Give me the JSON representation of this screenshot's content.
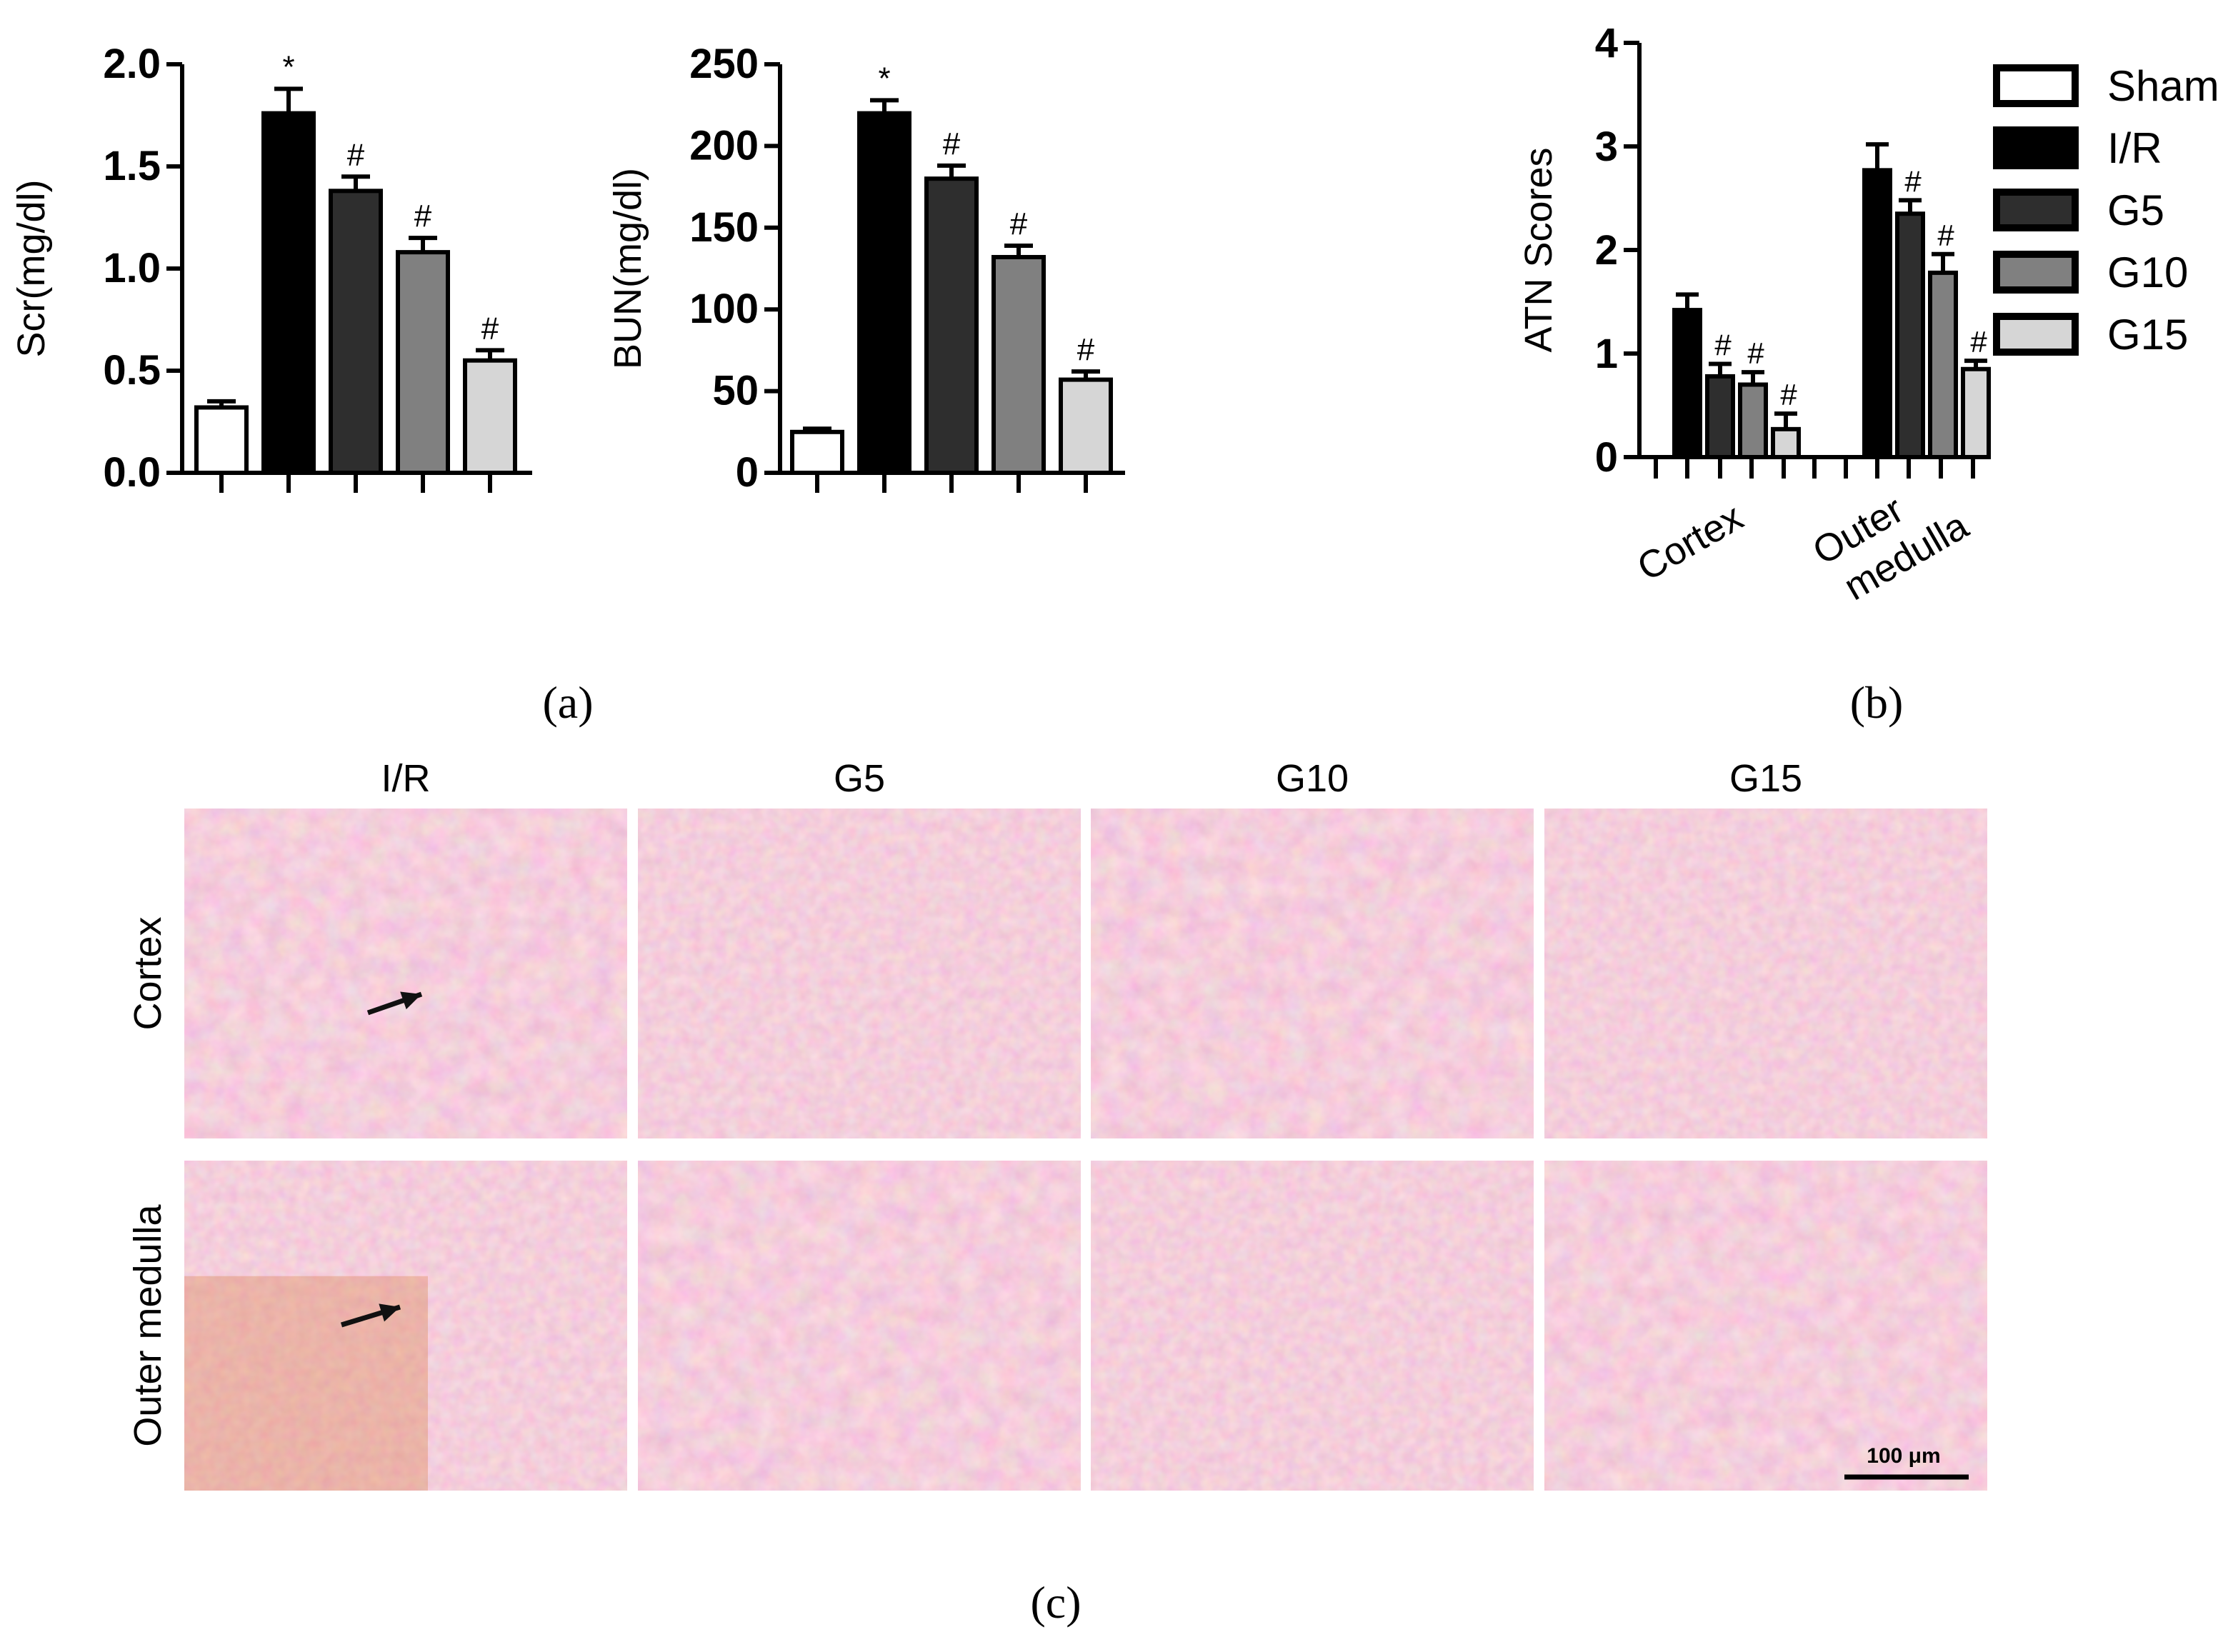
{
  "chart_data": [
    {
      "type": "bar",
      "panel": "a",
      "ylabel": "Scr(mg/dl)",
      "ylim": [
        0,
        2.0
      ],
      "yticks": [
        "0.0",
        "0.5",
        "1.0",
        "1.5",
        "2.0"
      ],
      "categories": [
        "Sham",
        "I/R",
        "G5",
        "G10",
        "G15"
      ],
      "values": [
        0.32,
        1.76,
        1.38,
        1.08,
        0.55
      ],
      "errors": [
        0.03,
        0.12,
        0.07,
        0.07,
        0.05
      ],
      "markers": [
        "",
        "*",
        "#",
        "#",
        "#"
      ]
    },
    {
      "type": "bar",
      "panel": "a",
      "ylabel": "BUN(mg/dl)",
      "ylim": [
        0,
        250
      ],
      "yticks": [
        "0",
        "50",
        "100",
        "150",
        "200",
        "250"
      ],
      "categories": [
        "Sham",
        "I/R",
        "G5",
        "G10",
        "G15"
      ],
      "values": [
        25,
        220,
        180,
        132,
        57
      ],
      "errors": [
        2,
        8,
        8,
        7,
        5
      ],
      "markers": [
        "",
        "*",
        "#",
        "#",
        "#"
      ]
    },
    {
      "type": "bar",
      "panel": "b",
      "ylabel": "ATN Scores",
      "ylim": [
        0,
        4
      ],
      "yticks": [
        "0",
        "1",
        "2",
        "3",
        "4"
      ],
      "categories": [
        "Cortex",
        "Outer medulla"
      ],
      "category_lines": [
        [
          "Cortex"
        ],
        [
          "Outer",
          "medulla"
        ]
      ],
      "series": [
        {
          "name": "I/R",
          "values": [
            1.42,
            2.77
          ],
          "errors": [
            0.15,
            0.25
          ],
          "markers": [
            "",
            ""
          ]
        },
        {
          "name": "G5",
          "values": [
            0.78,
            2.35
          ],
          "errors": [
            0.12,
            0.13
          ],
          "markers": [
            "#",
            "#"
          ]
        },
        {
          "name": "G10",
          "values": [
            0.7,
            1.78
          ],
          "errors": [
            0.12,
            0.18
          ],
          "markers": [
            "#",
            "#"
          ]
        },
        {
          "name": "G15",
          "values": [
            0.27,
            0.85
          ],
          "errors": [
            0.15,
            0.08
          ],
          "markers": [
            "#",
            "#"
          ]
        }
      ],
      "legend": [
        "Sham",
        "I/R",
        "G5",
        "G10",
        "G15"
      ],
      "legend_position": "right"
    }
  ],
  "colors": {
    "Sham": "#ffffff",
    "I/R": "#000000",
    "G5": "#2e2e2e",
    "G10": "#808080",
    "G15": "#d6d6d6"
  },
  "micrographs": {
    "columns": [
      "I/R",
      "G5",
      "G10",
      "G15"
    ],
    "rows": [
      "Cortex",
      "Outer medulla"
    ],
    "scale_bar": "100 μm"
  },
  "panel_labels": {
    "a": "(a)",
    "b": "(b)",
    "c": "(c)"
  }
}
